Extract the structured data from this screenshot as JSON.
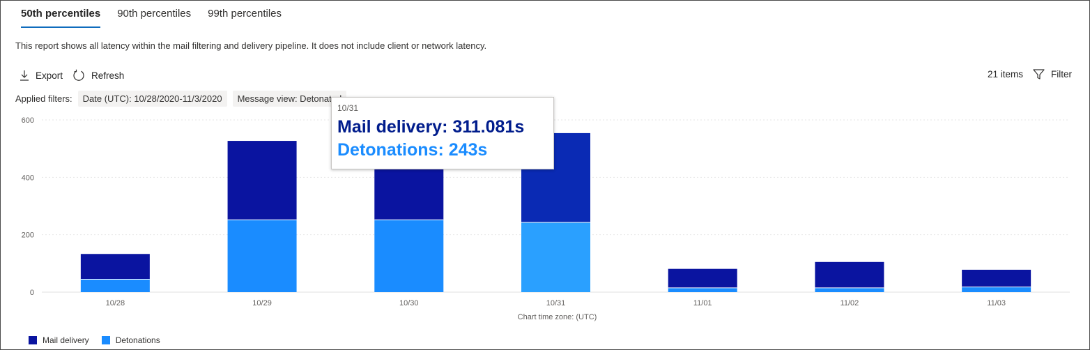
{
  "tabs": [
    {
      "label": "50th percentiles"
    },
    {
      "label": "90th percentiles"
    },
    {
      "label": "99th percentiles"
    }
  ],
  "description": "This report shows all latency within the mail filtering and delivery pipeline. It does not include client or network latency.",
  "toolbar": {
    "export_label": "Export",
    "refresh_label": "Refresh",
    "items_count": "21 items",
    "filter_label": "Filter",
    "export_icon": "download-icon",
    "refresh_icon": "refresh-icon",
    "filter_icon": "funnel-icon"
  },
  "filters": {
    "label": "Applied filters:",
    "date": "Date (UTC): 10/28/2020-11/3/2020",
    "message_view": "Message view: Detonated"
  },
  "tooltip": {
    "date": "10/31",
    "mail_delivery": "Mail delivery: 311.081s",
    "detonations": "Detonations: 243s"
  },
  "colors": {
    "mail_delivery": "#0a14a0",
    "detonations": "#1a8cff",
    "accent": "#0f6cbd"
  },
  "chart_data": {
    "type": "bar",
    "stacked": true,
    "categories": [
      "10/28",
      "10/29",
      "10/30",
      "10/31",
      "11/01",
      "11/02",
      "11/03"
    ],
    "series": [
      {
        "name": "Detonations",
        "values": [
          45,
          252,
          252,
          243,
          15,
          15,
          18
        ]
      },
      {
        "name": "Mail delivery",
        "values": [
          88,
          275,
          275,
          311.081,
          66,
          90,
          60
        ]
      }
    ],
    "xlabel": "Chart time zone: (UTC)",
    "ylabel": "",
    "yticks": [
      0,
      200,
      400,
      600
    ],
    "ylim": [
      0,
      600
    ],
    "grid": true,
    "legend": "bottom-left"
  }
}
